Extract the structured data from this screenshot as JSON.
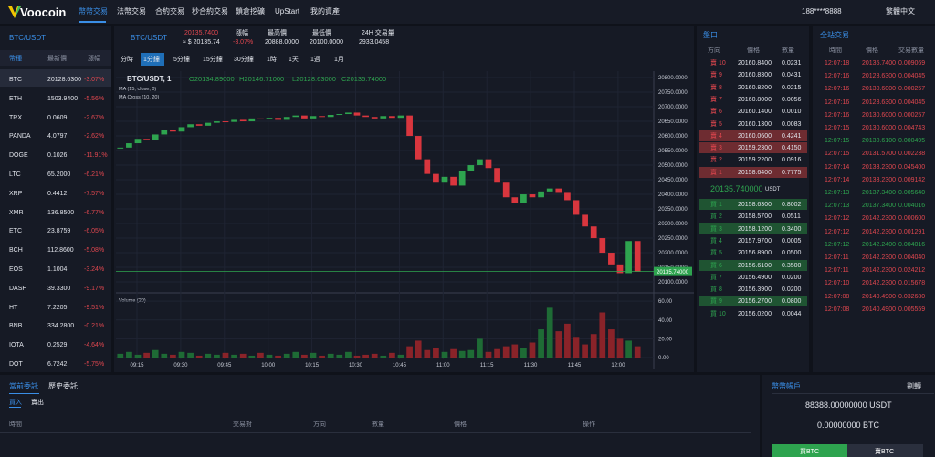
{
  "header": {
    "logo": "Voocoin",
    "nav": [
      "幣幣交易",
      "法幣交易",
      "合約交易",
      "秒合約交易",
      "鎖倉挖礦",
      "UpStart",
      "我的資產"
    ],
    "user": "188****8888",
    "language": "繁體中文"
  },
  "market_list": {
    "title": "BTC/USDT",
    "columns": [
      "幣種",
      "最新價",
      "漲幅"
    ],
    "rows": [
      [
        "BTC",
        "20128.6300",
        "-3.07%"
      ],
      [
        "ETH",
        "1503.9400",
        "-5.56%"
      ],
      [
        "TRX",
        "0.0609",
        "-2.67%"
      ],
      [
        "PANDA",
        "4.0797",
        "-2.62%"
      ],
      [
        "DOGE",
        "0.1026",
        "-11.91%"
      ],
      [
        "LTC",
        "65.2000",
        "-6.21%"
      ],
      [
        "XRP",
        "0.4412",
        "-7.57%"
      ],
      [
        "XMR",
        "136.8500",
        "-6.77%"
      ],
      [
        "ETC",
        "23.8759",
        "-6.05%"
      ],
      [
        "BCH",
        "112.8600",
        "-5.08%"
      ],
      [
        "EOS",
        "1.1004",
        "-3.24%"
      ],
      [
        "DASH",
        "39.3300",
        "-9.17%"
      ],
      [
        "HT",
        "7.2205",
        "-9.51%"
      ],
      [
        "BNB",
        "334.2800",
        "-0.21%"
      ],
      [
        "IOTA",
        "0.2529",
        "-4.64%"
      ],
      [
        "DOT",
        "6.7242",
        "-5.75%"
      ]
    ]
  },
  "ticker": {
    "pair": "BTC/USDT",
    "price": "20135.7400",
    "price_usd": "≈ $ 20135.74",
    "stats": [
      {
        "label": "漲幅",
        "value": "-3.07%"
      },
      {
        "label": "最高價",
        "value": "20888.0000"
      },
      {
        "label": "最低價",
        "value": "20100.0000"
      },
      {
        "label": "24H 交易量",
        "value": "2933.0458"
      }
    ]
  },
  "chart_toolbar": {
    "intervals": [
      "分時",
      "1分鐘",
      "5分鐘",
      "15分鐘",
      "30分鐘",
      "1時",
      "1天",
      "1週",
      "1月"
    ],
    "active": 1
  },
  "chart_data": {
    "type": "candlestick",
    "title": "BTC/USDT, 1",
    "ohlc_legend": [
      "O20134.89000",
      "H20146.71000",
      "L20128.63000",
      "C20135.74000"
    ],
    "indicators": [
      "MA (15, close, 0)",
      "MA Cross (10, 20)"
    ],
    "up_color": "#2ea44f",
    "down_color": "#d9363e",
    "close": [
      20560,
      20575,
      20590,
      20585,
      20605,
      20620,
      20615,
      20630,
      20640,
      20635,
      20645,
      20650,
      20648,
      20655,
      20650,
      20660,
      20658,
      20662,
      20655,
      20665,
      20670,
      20660,
      20668,
      20665,
      20672,
      20675,
      20680,
      20670,
      20665,
      20660,
      20668,
      20662,
      20670,
      20600,
      20520,
      20470,
      20440,
      20460,
      20430,
      20480,
      20500,
      20520,
      20490,
      20440,
      20390,
      20370,
      20400,
      20390,
      20410,
      20420,
      20405,
      20380,
      20330,
      20290,
      20250,
      20200,
      20160,
      20130,
      20240,
      20135
    ],
    "xtick_labels": [
      "09:15",
      "09:30",
      "09:45",
      "10:00",
      "10:15",
      "10:30",
      "10:45",
      "11:00",
      "11:15",
      "11:30",
      "11:45",
      "12:00"
    ],
    "ylim": [
      20072,
      20822
    ],
    "yticks": [
      {
        "value": 20800,
        "label": "20800.0000"
      },
      {
        "value": 20750,
        "label": "20750.0000"
      },
      {
        "value": 20700,
        "label": "20700.0000"
      },
      {
        "value": 20650,
        "label": "20650.0000"
      },
      {
        "value": 20600,
        "label": "20600.0000"
      },
      {
        "value": 20550,
        "label": "20550.0000"
      },
      {
        "value": 20500,
        "label": "20500.0000"
      },
      {
        "value": 20450,
        "label": "20450.0000"
      },
      {
        "value": 20400,
        "label": "20400.0000"
      },
      {
        "value": 20350,
        "label": "20350.0000"
      },
      {
        "value": 20300,
        "label": "20300.0000"
      },
      {
        "value": 20250,
        "label": "20250.0000"
      },
      {
        "value": 20200,
        "label": "20200.0000"
      },
      {
        "value": 20150,
        "label": "20150.0000"
      },
      {
        "value": 20100,
        "label": "20100.0000"
      }
    ],
    "last_price": {
      "value": 20135.74,
      "label": "20135.74000"
    },
    "volume": {
      "title": "Volume (20)",
      "values": [
        4,
        6,
        3,
        5,
        8,
        4,
        3,
        6,
        5,
        2,
        4,
        3,
        5,
        3,
        4,
        2,
        5,
        3,
        2,
        4,
        6,
        3,
        5,
        2,
        4,
        3,
        6,
        2,
        3,
        4,
        2,
        5,
        3,
        12,
        18,
        8,
        10,
        6,
        9,
        7,
        8,
        20,
        6,
        9,
        12,
        14,
        10,
        16,
        30,
        53,
        28,
        36,
        22,
        14,
        25,
        48,
        30,
        20,
        18,
        12
      ],
      "ylim": [
        0,
        64
      ],
      "yticks": [
        {
          "value": 60,
          "label": "60.00"
        },
        {
          "value": 40,
          "label": "40.00"
        },
        {
          "value": 20,
          "label": "20.00"
        },
        {
          "value": 0,
          "label": "0.00"
        }
      ]
    }
  },
  "order_book": {
    "title": "盤口",
    "columns": [
      "方向",
      "價格",
      "數量"
    ],
    "asks": [
      [
        "賣 10",
        "20160.8400",
        "0.0231"
      ],
      [
        "賣 9",
        "20160.8300",
        "0.0431"
      ],
      [
        "賣 8",
        "20160.8200",
        "0.0215"
      ],
      [
        "賣 7",
        "20160.8000",
        "0.0056"
      ],
      [
        "賣 6",
        "20160.1400",
        "0.0010"
      ],
      [
        "賣 5",
        "20160.1300",
        "0.0083"
      ],
      [
        "賣 4",
        "20160.0600",
        "0.4241"
      ],
      [
        "賣 3",
        "20159.2300",
        "0.4150"
      ],
      [
        "賣 2",
        "20159.2200",
        "0.0916"
      ],
      [
        "賣 1",
        "20158.6400",
        "0.7775"
      ]
    ],
    "ask_highlight": [
      6,
      7,
      9
    ],
    "mid_price": "20135.740000",
    "mid_unit": "USDT",
    "bids": [
      [
        "買 1",
        "20158.6300",
        "0.8002"
      ],
      [
        "買 2",
        "20158.5700",
        "0.0511"
      ],
      [
        "買 3",
        "20158.1200",
        "0.3400"
      ],
      [
        "買 4",
        "20157.9700",
        "0.0005"
      ],
      [
        "買 5",
        "20156.8900",
        "0.0500"
      ],
      [
        "買 6",
        "20156.6100",
        "0.3500"
      ],
      [
        "買 7",
        "20156.4900",
        "0.0200"
      ],
      [
        "買 8",
        "20156.3900",
        "0.0200"
      ],
      [
        "買 9",
        "20156.2700",
        "0.0800"
      ],
      [
        "買 10",
        "20156.0200",
        "0.0044"
      ]
    ],
    "bid_highlight": [
      0,
      2,
      5,
      8
    ]
  },
  "trades": {
    "title": "全站交易",
    "columns": [
      "時間",
      "價格",
      "交易數量"
    ],
    "rows": [
      [
        "12:07:18",
        "20135.7400",
        "0.009069"
      ],
      [
        "12:07:16",
        "20128.6300",
        "0.004045"
      ],
      [
        "12:07:16",
        "20130.6000",
        "0.000257"
      ],
      [
        "12:07:16",
        "20128.6300",
        "0.004045"
      ],
      [
        "12:07:16",
        "20130.6000",
        "0.000257"
      ],
      [
        "12:07:15",
        "20130.6000",
        "0.004743"
      ],
      [
        "12:07:15",
        "20130.6100",
        "0.000495"
      ],
      [
        "12:07:15",
        "20131.5700",
        "0.002238"
      ],
      [
        "12:07:14",
        "20133.2300",
        "0.045400"
      ],
      [
        "12:07:14",
        "20133.2300",
        "0.009142"
      ],
      [
        "12:07:13",
        "20137.3400",
        "0.005640"
      ],
      [
        "12:07:13",
        "20137.3400",
        "0.004016"
      ],
      [
        "12:07:12",
        "20142.2300",
        "0.000600"
      ],
      [
        "12:07:12",
        "20142.2300",
        "0.001291"
      ],
      [
        "12:07:12",
        "20142.2400",
        "0.004016"
      ],
      [
        "12:07:11",
        "20142.2300",
        "0.004040"
      ],
      [
        "12:07:11",
        "20142.2300",
        "0.024212"
      ],
      [
        "12:07:10",
        "20142.2300",
        "0.015678"
      ],
      [
        "12:07:08",
        "20140.4900",
        "0.032680"
      ],
      [
        "12:07:08",
        "20140.4900",
        "0.005559"
      ]
    ],
    "buy_rows": [
      6,
      10,
      11,
      14
    ]
  },
  "orders": {
    "tabs": [
      "當前委託",
      "歷史委託"
    ],
    "sides": [
      "買入",
      "賣出"
    ],
    "columns": [
      "時間",
      "交易對",
      "方向",
      "數量",
      "價格",
      "操作"
    ]
  },
  "account": {
    "title": "幣幣帳戶",
    "transfer": "劃轉",
    "balances": [
      "88388.00000000 USDT",
      "0.00000000 BTC"
    ],
    "buttons": [
      "買BTC",
      "賣BTC"
    ]
  }
}
